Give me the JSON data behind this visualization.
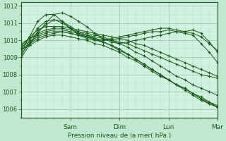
{
  "bg_color": "#c0e8d0",
  "plot_bg_color": "#d0f0e0",
  "grid_color_major": "#a8c8b8",
  "grid_color_minor": "#b8d8c8",
  "line_color": "#1a5c1a",
  "marker": "+",
  "xlabel_text": "Pression niveau de la mer( hPa )",
  "xticklabels": [
    "Sam",
    "Dim",
    "Lun",
    "Mar"
  ],
  "ylim": [
    1005.5,
    1012.2
  ],
  "xlim": [
    0,
    96
  ],
  "yticks": [
    1006,
    1007,
    1008,
    1009,
    1010,
    1011,
    1012
  ],
  "xtick_positions": [
    24,
    48,
    72,
    96
  ],
  "series": [
    [
      1009.5,
      1009.7,
      1010.0,
      1010.2,
      1010.3,
      1010.3,
      1010.2,
      1010.1,
      1010.0,
      1009.8,
      1009.7,
      1009.5,
      1009.3,
      1009.0,
      1008.8,
      1008.5,
      1008.2,
      1007.9,
      1007.7,
      1007.4,
      1007.2,
      1006.9,
      1006.7,
      1006.4,
      1006.2
    ],
    [
      1009.6,
      1009.9,
      1010.2,
      1010.4,
      1010.5,
      1010.5,
      1010.4,
      1010.3,
      1010.2,
      1010.0,
      1009.9,
      1009.7,
      1009.4,
      1009.2,
      1008.9,
      1008.6,
      1008.3,
      1008.0,
      1007.7,
      1007.4,
      1007.2,
      1006.9,
      1006.6,
      1006.4,
      1006.1
    ],
    [
      1009.4,
      1009.8,
      1010.1,
      1010.3,
      1010.4,
      1010.5,
      1010.4,
      1010.3,
      1010.2,
      1010.1,
      1009.9,
      1009.7,
      1009.5,
      1009.2,
      1008.9,
      1008.6,
      1008.3,
      1008.0,
      1007.7,
      1007.4,
      1007.2,
      1006.9,
      1006.6,
      1006.3,
      1006.1
    ],
    [
      1009.7,
      1010.1,
      1010.3,
      1010.5,
      1010.6,
      1010.6,
      1010.5,
      1010.4,
      1010.3,
      1010.1,
      1009.9,
      1009.7,
      1009.4,
      1009.2,
      1008.9,
      1008.6,
      1008.3,
      1008.0,
      1007.7,
      1007.4,
      1007.1,
      1006.8,
      1006.5,
      1006.3,
      1006.1
    ],
    [
      1009.2,
      1009.8,
      1010.5,
      1010.9,
      1011.2,
      1011.1,
      1010.8,
      1010.5,
      1010.3,
      1010.2,
      1010.1,
      1010.0,
      1009.9,
      1009.8,
      1009.6,
      1009.4,
      1009.2,
      1009.0,
      1008.8,
      1008.6,
      1008.4,
      1008.2,
      1008.0,
      1007.9,
      1007.8
    ],
    [
      1009.8,
      1010.1,
      1010.4,
      1010.6,
      1010.7,
      1010.7,
      1010.6,
      1010.5,
      1010.4,
      1010.3,
      1010.2,
      1010.0,
      1009.8,
      1009.6,
      1009.3,
      1009.1,
      1008.8,
      1008.5,
      1008.2,
      1007.9,
      1007.7,
      1007.4,
      1007.2,
      1007.0,
      1006.8
    ],
    [
      1009.5,
      1010.2,
      1010.6,
      1010.8,
      1010.8,
      1010.8,
      1010.7,
      1010.6,
      1010.5,
      1010.4,
      1010.3,
      1010.2,
      1010.1,
      1010.0,
      1009.8,
      1009.7,
      1009.5,
      1009.3,
      1009.1,
      1008.9,
      1008.7,
      1008.5,
      1008.3,
      1008.1,
      1007.9
    ],
    [
      1009.3,
      1010.2,
      1011.1,
      1011.5,
      1011.5,
      1011.1,
      1010.7,
      1010.4,
      1010.2,
      1010.1,
      1010.0,
      1010.0,
      1010.1,
      1010.2,
      1010.3,
      1010.4,
      1010.5,
      1010.5,
      1010.6,
      1010.5,
      1010.4,
      1010.3,
      1009.8,
      1009.3,
      1008.7
    ],
    [
      1009.0,
      1009.7,
      1010.4,
      1011.0,
      1011.5,
      1011.6,
      1011.4,
      1011.1,
      1010.8,
      1010.4,
      1010.1,
      1009.9,
      1009.8,
      1009.9,
      1010.0,
      1010.1,
      1010.2,
      1010.3,
      1010.4,
      1010.5,
      1010.5,
      1010.6,
      1010.4,
      1009.9,
      1009.3
    ],
    [
      1009.1,
      1010.0,
      1010.7,
      1011.1,
      1011.2,
      1011.0,
      1010.7,
      1010.3,
      1010.1,
      1010.0,
      1010.0,
      1010.1,
      1010.2,
      1010.3,
      1010.4,
      1010.5,
      1010.6,
      1010.7,
      1010.7,
      1010.6,
      1010.5,
      1010.4,
      1010.2,
      1009.8,
      1009.4
    ]
  ]
}
